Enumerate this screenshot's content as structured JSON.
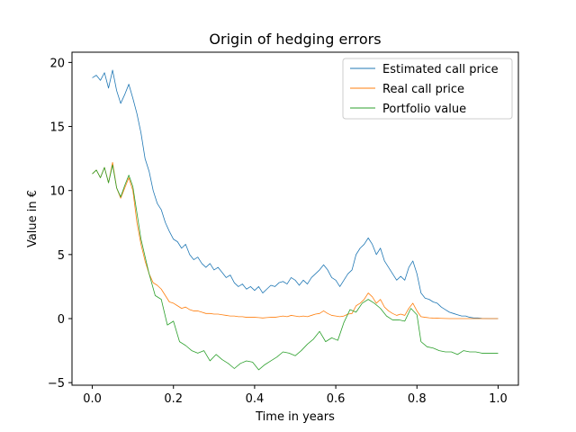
{
  "chart_data": {
    "type": "line",
    "title": "Origin of hedging errors",
    "xlabel": "Time in years",
    "ylabel": "Value in €",
    "xlim": [
      -0.05,
      1.05
    ],
    "ylim": [
      -5.2,
      20.8
    ],
    "xticks": [
      0.0,
      0.2,
      0.4,
      0.6,
      0.8,
      1.0
    ],
    "xtick_labels": [
      "0.0",
      "0.2",
      "0.4",
      "0.6",
      "0.8",
      "1.0"
    ],
    "yticks": [
      -5,
      0,
      5,
      10,
      15,
      20
    ],
    "ytick_labels": [
      "−5",
      "0",
      "5",
      "10",
      "15",
      "20"
    ],
    "grid": false,
    "legend_position": "top-right",
    "series": [
      {
        "name": "Estimated call price",
        "color": "#1f77b4",
        "points": [
          [
            0.0,
            18.8
          ],
          [
            0.01,
            19.0
          ],
          [
            0.02,
            18.6
          ],
          [
            0.03,
            19.2
          ],
          [
            0.04,
            18.0
          ],
          [
            0.05,
            19.4
          ],
          [
            0.06,
            17.8
          ],
          [
            0.07,
            16.8
          ],
          [
            0.08,
            17.5
          ],
          [
            0.09,
            18.3
          ],
          [
            0.1,
            17.2
          ],
          [
            0.11,
            16.0
          ],
          [
            0.12,
            14.5
          ],
          [
            0.13,
            12.5
          ],
          [
            0.14,
            11.5
          ],
          [
            0.15,
            10.0
          ],
          [
            0.16,
            9.0
          ],
          [
            0.17,
            8.5
          ],
          [
            0.18,
            7.5
          ],
          [
            0.19,
            6.8
          ],
          [
            0.2,
            6.2
          ],
          [
            0.21,
            6.0
          ],
          [
            0.22,
            5.5
          ],
          [
            0.23,
            5.8
          ],
          [
            0.24,
            5.0
          ],
          [
            0.25,
            4.6
          ],
          [
            0.26,
            4.8
          ],
          [
            0.27,
            4.3
          ],
          [
            0.28,
            4.0
          ],
          [
            0.29,
            4.3
          ],
          [
            0.3,
            3.8
          ],
          [
            0.31,
            4.0
          ],
          [
            0.32,
            3.6
          ],
          [
            0.33,
            3.2
          ],
          [
            0.34,
            3.4
          ],
          [
            0.35,
            2.8
          ],
          [
            0.36,
            2.5
          ],
          [
            0.37,
            2.7
          ],
          [
            0.38,
            2.3
          ],
          [
            0.39,
            2.5
          ],
          [
            0.4,
            2.2
          ],
          [
            0.41,
            2.5
          ],
          [
            0.42,
            2.0
          ],
          [
            0.43,
            2.3
          ],
          [
            0.44,
            2.6
          ],
          [
            0.45,
            2.5
          ],
          [
            0.46,
            2.8
          ],
          [
            0.47,
            2.9
          ],
          [
            0.48,
            2.7
          ],
          [
            0.49,
            3.2
          ],
          [
            0.5,
            3.0
          ],
          [
            0.51,
            2.6
          ],
          [
            0.52,
            3.0
          ],
          [
            0.53,
            2.7
          ],
          [
            0.54,
            3.2
          ],
          [
            0.55,
            3.5
          ],
          [
            0.56,
            3.8
          ],
          [
            0.57,
            4.2
          ],
          [
            0.58,
            3.8
          ],
          [
            0.59,
            3.2
          ],
          [
            0.6,
            3.0
          ],
          [
            0.61,
            2.5
          ],
          [
            0.62,
            3.0
          ],
          [
            0.63,
            3.5
          ],
          [
            0.64,
            3.8
          ],
          [
            0.65,
            5.0
          ],
          [
            0.66,
            5.5
          ],
          [
            0.67,
            5.8
          ],
          [
            0.68,
            6.3
          ],
          [
            0.69,
            5.8
          ],
          [
            0.7,
            5.0
          ],
          [
            0.71,
            5.5
          ],
          [
            0.72,
            4.5
          ],
          [
            0.73,
            4.0
          ],
          [
            0.74,
            3.5
          ],
          [
            0.75,
            3.0
          ],
          [
            0.76,
            3.3
          ],
          [
            0.77,
            3.0
          ],
          [
            0.78,
            4.0
          ],
          [
            0.79,
            4.5
          ],
          [
            0.8,
            3.5
          ],
          [
            0.81,
            2.0
          ],
          [
            0.82,
            1.6
          ],
          [
            0.83,
            1.5
          ],
          [
            0.84,
            1.3
          ],
          [
            0.85,
            1.2
          ],
          [
            0.86,
            0.9
          ],
          [
            0.87,
            0.7
          ],
          [
            0.88,
            0.5
          ],
          [
            0.89,
            0.4
          ],
          [
            0.9,
            0.3
          ],
          [
            0.91,
            0.2
          ],
          [
            0.92,
            0.2
          ],
          [
            0.93,
            0.1
          ],
          [
            0.94,
            0.05
          ],
          [
            0.95,
            0.05
          ],
          [
            0.96,
            0.02
          ],
          [
            0.97,
            0.01
          ],
          [
            0.98,
            0.0
          ],
          [
            0.99,
            0.0
          ],
          [
            1.0,
            0.0
          ]
        ]
      },
      {
        "name": "Real call price",
        "color": "#ff7f0e",
        "points": [
          [
            0.0,
            11.3
          ],
          [
            0.01,
            11.6
          ],
          [
            0.02,
            11.0
          ],
          [
            0.03,
            11.8
          ],
          [
            0.04,
            10.6
          ],
          [
            0.05,
            12.2
          ],
          [
            0.06,
            10.2
          ],
          [
            0.07,
            9.4
          ],
          [
            0.08,
            10.2
          ],
          [
            0.09,
            11.0
          ],
          [
            0.1,
            10.0
          ],
          [
            0.11,
            7.5
          ],
          [
            0.12,
            5.8
          ],
          [
            0.13,
            4.5
          ],
          [
            0.14,
            3.5
          ],
          [
            0.15,
            2.8
          ],
          [
            0.16,
            2.6
          ],
          [
            0.17,
            2.3
          ],
          [
            0.18,
            1.8
          ],
          [
            0.19,
            1.3
          ],
          [
            0.2,
            1.2
          ],
          [
            0.21,
            1.0
          ],
          [
            0.22,
            0.8
          ],
          [
            0.23,
            0.9
          ],
          [
            0.24,
            0.7
          ],
          [
            0.25,
            0.6
          ],
          [
            0.26,
            0.6
          ],
          [
            0.27,
            0.5
          ],
          [
            0.28,
            0.4
          ],
          [
            0.29,
            0.4
          ],
          [
            0.3,
            0.35
          ],
          [
            0.31,
            0.35
          ],
          [
            0.32,
            0.3
          ],
          [
            0.33,
            0.25
          ],
          [
            0.34,
            0.2
          ],
          [
            0.35,
            0.2
          ],
          [
            0.36,
            0.15
          ],
          [
            0.37,
            0.15
          ],
          [
            0.38,
            0.1
          ],
          [
            0.39,
            0.1
          ],
          [
            0.4,
            0.1
          ],
          [
            0.41,
            0.08
          ],
          [
            0.42,
            0.05
          ],
          [
            0.43,
            0.08
          ],
          [
            0.44,
            0.1
          ],
          [
            0.45,
            0.1
          ],
          [
            0.46,
            0.15
          ],
          [
            0.47,
            0.2
          ],
          [
            0.48,
            0.15
          ],
          [
            0.49,
            0.25
          ],
          [
            0.5,
            0.2
          ],
          [
            0.51,
            0.15
          ],
          [
            0.52,
            0.2
          ],
          [
            0.53,
            0.15
          ],
          [
            0.54,
            0.25
          ],
          [
            0.55,
            0.35
          ],
          [
            0.56,
            0.4
          ],
          [
            0.57,
            0.6
          ],
          [
            0.58,
            0.4
          ],
          [
            0.59,
            0.25
          ],
          [
            0.6,
            0.2
          ],
          [
            0.61,
            0.15
          ],
          [
            0.62,
            0.2
          ],
          [
            0.63,
            0.35
          ],
          [
            0.64,
            0.4
          ],
          [
            0.65,
            1.0
          ],
          [
            0.66,
            1.2
          ],
          [
            0.67,
            1.5
          ],
          [
            0.68,
            2.0
          ],
          [
            0.69,
            1.7
          ],
          [
            0.7,
            1.2
          ],
          [
            0.71,
            1.5
          ],
          [
            0.72,
            0.9
          ],
          [
            0.73,
            0.6
          ],
          [
            0.74,
            0.4
          ],
          [
            0.75,
            0.25
          ],
          [
            0.76,
            0.35
          ],
          [
            0.77,
            0.25
          ],
          [
            0.78,
            0.8
          ],
          [
            0.79,
            1.2
          ],
          [
            0.8,
            0.6
          ],
          [
            0.81,
            0.15
          ],
          [
            0.82,
            0.1
          ],
          [
            0.83,
            0.06
          ],
          [
            0.84,
            0.04
          ],
          [
            0.85,
            0.03
          ],
          [
            0.86,
            0.02
          ],
          [
            0.87,
            0.01
          ],
          [
            0.88,
            0.0
          ],
          [
            0.9,
            0.0
          ],
          [
            0.92,
            0.0
          ],
          [
            0.94,
            0.0
          ],
          [
            0.96,
            0.0
          ],
          [
            0.98,
            0.0
          ],
          [
            1.0,
            0.0
          ]
        ]
      },
      {
        "name": "Portfolio value",
        "color": "#2ca02c",
        "points": [
          [
            0.0,
            11.3
          ],
          [
            0.01,
            11.6
          ],
          [
            0.02,
            11.0
          ],
          [
            0.03,
            11.8
          ],
          [
            0.04,
            10.6
          ],
          [
            0.05,
            12.0
          ],
          [
            0.06,
            10.2
          ],
          [
            0.07,
            9.5
          ],
          [
            0.08,
            10.4
          ],
          [
            0.09,
            11.2
          ],
          [
            0.1,
            10.3
          ],
          [
            0.12,
            6.2
          ],
          [
            0.14,
            3.5
          ],
          [
            0.155,
            1.8
          ],
          [
            0.17,
            1.5
          ],
          [
            0.185,
            -0.5
          ],
          [
            0.2,
            -0.2
          ],
          [
            0.215,
            -1.8
          ],
          [
            0.23,
            -2.1
          ],
          [
            0.245,
            -2.5
          ],
          [
            0.26,
            -2.7
          ],
          [
            0.275,
            -2.5
          ],
          [
            0.29,
            -3.3
          ],
          [
            0.305,
            -2.8
          ],
          [
            0.32,
            -3.2
          ],
          [
            0.335,
            -3.5
          ],
          [
            0.35,
            -3.9
          ],
          [
            0.365,
            -3.5
          ],
          [
            0.38,
            -3.3
          ],
          [
            0.395,
            -3.4
          ],
          [
            0.41,
            -4.0
          ],
          [
            0.425,
            -3.6
          ],
          [
            0.44,
            -3.3
          ],
          [
            0.455,
            -3.0
          ],
          [
            0.47,
            -2.6
          ],
          [
            0.485,
            -2.7
          ],
          [
            0.5,
            -2.9
          ],
          [
            0.515,
            -2.5
          ],
          [
            0.53,
            -2.0
          ],
          [
            0.545,
            -1.6
          ],
          [
            0.56,
            -1.0
          ],
          [
            0.575,
            -1.8
          ],
          [
            0.59,
            -1.5
          ],
          [
            0.605,
            -1.7
          ],
          [
            0.62,
            -0.3
          ],
          [
            0.635,
            0.7
          ],
          [
            0.65,
            0.5
          ],
          [
            0.665,
            1.2
          ],
          [
            0.68,
            1.5
          ],
          [
            0.695,
            1.2
          ],
          [
            0.71,
            0.8
          ],
          [
            0.725,
            0.2
          ],
          [
            0.74,
            -0.1
          ],
          [
            0.755,
            -0.1
          ],
          [
            0.77,
            -0.2
          ],
          [
            0.785,
            0.8
          ],
          [
            0.8,
            0.3
          ],
          [
            0.81,
            -1.8
          ],
          [
            0.825,
            -2.2
          ],
          [
            0.84,
            -2.3
          ],
          [
            0.855,
            -2.5
          ],
          [
            0.87,
            -2.6
          ],
          [
            0.885,
            -2.6
          ],
          [
            0.9,
            -2.8
          ],
          [
            0.915,
            -2.5
          ],
          [
            0.93,
            -2.6
          ],
          [
            0.945,
            -2.6
          ],
          [
            0.96,
            -2.7
          ],
          [
            0.975,
            -2.7
          ],
          [
            0.99,
            -2.7
          ],
          [
            1.0,
            -2.7
          ]
        ]
      }
    ]
  }
}
